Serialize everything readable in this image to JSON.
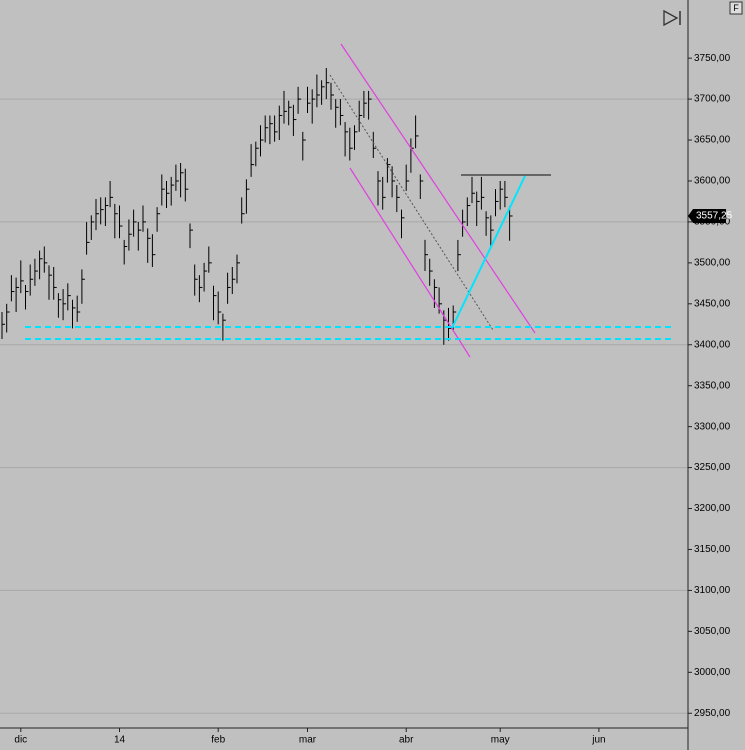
{
  "chart_data": {
    "type": "ohlc",
    "color": "#000000",
    "categories": [
      null,
      null,
      null,
      null,
      "dic",
      null,
      null,
      null,
      null,
      null,
      null,
      null,
      null,
      null,
      null,
      null,
      null,
      null,
      null,
      null,
      null,
      null,
      null,
      null,
      null,
      "14",
      null,
      null,
      null,
      null,
      null,
      null,
      null,
      null,
      null,
      null,
      null,
      null,
      null,
      null,
      null,
      null,
      null,
      null,
      null,
      null,
      "feb",
      null,
      null,
      null,
      null,
      null,
      null,
      null,
      null,
      null,
      null,
      null,
      null,
      null,
      null,
      null,
      null,
      null,
      null,
      "mar",
      null,
      null,
      null,
      null,
      null,
      null,
      null,
      null,
      null,
      null,
      null,
      null,
      null,
      null,
      null,
      null,
      null,
      null,
      null,
      null,
      "abr",
      null,
      null,
      null,
      null,
      null,
      null,
      null,
      null,
      null,
      null,
      null,
      null,
      null,
      null,
      null,
      null,
      null,
      null,
      null,
      "may",
      null,
      null,
      null,
      null,
      null,
      null,
      null,
      null,
      null,
      null,
      null,
      null,
      null,
      null,
      null,
      null,
      null,
      null,
      null,
      null,
      "jun"
    ],
    "high": [
      3440,
      3450,
      3485,
      3482,
      3503,
      3473,
      3498,
      3505,
      3515,
      3520,
      3497,
      3495,
      3463,
      3468,
      3475,
      3455,
      3460,
      3492,
      3550,
      3558,
      3578,
      3580,
      3580,
      3600,
      3572,
      3570,
      3528,
      3553,
      3565,
      3550,
      3570,
      3542,
      3535,
      3568,
      3608,
      3600,
      3605,
      3620,
      3622,
      3615,
      3548,
      3498,
      3485,
      3500,
      3520,
      3472,
      3465,
      3438,
      3488,
      3495,
      3510,
      3580,
      3602,
      3645,
      3648,
      3668,
      3680,
      3680,
      3680,
      3692,
      3710,
      3698,
      3693,
      3715,
      3660,
      3715,
      3712,
      3730,
      3723,
      3738,
      3720,
      3700,
      3700,
      3672,
      3665,
      3668,
      3698,
      3710,
      3710,
      3660,
      3612,
      3605,
      3628,
      3618,
      3595,
      3565,
      3620,
      3652,
      3680,
      3608,
      3528,
      3505,
      3480,
      3470,
      3442,
      3445,
      3448,
      3528,
      3565,
      3580,
      3605,
      3587,
      3605,
      3563,
      3558,
      3590,
      3600,
      3600,
      3569,
      null,
      null,
      null,
      null,
      null,
      null,
      null,
      null,
      null,
      null,
      null,
      null,
      null,
      null,
      null,
      null,
      null,
      null,
      null
    ],
    "low": [
      3407,
      3415,
      3453,
      3440,
      3463,
      3443,
      3460,
      3472,
      3480,
      3488,
      3455,
      3455,
      3433,
      3430,
      3442,
      3420,
      3428,
      3450,
      3510,
      3528,
      3540,
      3547,
      3545,
      3568,
      3530,
      3530,
      3498,
      3515,
      3532,
      3515,
      3538,
      3500,
      3495,
      3538,
      3570,
      3567,
      3570,
      3588,
      3580,
      3575,
      3518,
      3460,
      3452,
      3465,
      3488,
      3430,
      3425,
      3405,
      3450,
      3462,
      3475,
      3548,
      3560,
      3605,
      3618,
      3630,
      3647,
      3645,
      3648,
      3650,
      3670,
      3668,
      3655,
      3682,
      3625,
      3683,
      3670,
      3690,
      3693,
      3700,
      3687,
      3665,
      3668,
      3630,
      3625,
      3638,
      3660,
      3677,
      3675,
      3628,
      3570,
      3565,
      3598,
      3580,
      3562,
      3530,
      3588,
      3610,
      3640,
      3578,
      3490,
      3472,
      3445,
      3438,
      3400,
      3405,
      3418,
      3490,
      3532,
      3545,
      3573,
      3545,
      3565,
      3533,
      3520,
      3557,
      3565,
      3568,
      3527,
      null,
      null,
      null,
      null,
      null,
      null,
      null,
      null,
      null,
      null,
      null,
      null,
      null,
      null,
      null,
      null,
      null,
      null,
      null
    ],
    "close": [
      3425,
      3440,
      3465,
      3470,
      3478,
      3465,
      3480,
      3490,
      3505,
      3500,
      3485,
      3470,
      3455,
      3450,
      3460,
      3445,
      3440,
      3480,
      3525,
      3550,
      3560,
      3565,
      3570,
      3580,
      3560,
      3545,
      3520,
      3535,
      3550,
      3540,
      3550,
      3530,
      3510,
      3560,
      3590,
      3585,
      3595,
      3600,
      3610,
      3590,
      3540,
      3480,
      3470,
      3490,
      3500,
      3460,
      3440,
      3430,
      3470,
      3480,
      3500,
      3560,
      3590,
      3620,
      3640,
      3650,
      3665,
      3670,
      3660,
      3680,
      3685,
      3690,
      3675,
      3700,
      3650,
      3695,
      3700,
      3705,
      3715,
      3720,
      3705,
      3690,
      3680,
      3660,
      3640,
      3660,
      3680,
      3695,
      3700,
      3640,
      3600,
      3580,
      3620,
      3600,
      3580,
      3555,
      3600,
      3640,
      3655,
      3600,
      3510,
      3490,
      3470,
      3450,
      3430,
      3420,
      3440,
      3510,
      3550,
      3570,
      3585,
      3575,
      3580,
      3555,
      3540,
      3575,
      3590,
      3580,
      3557.25,
      null,
      null,
      null,
      null,
      null,
      null,
      null,
      null,
      null,
      null,
      null,
      null,
      null,
      null,
      null,
      null,
      null,
      null,
      null
    ],
    "last_price": {
      "value": 3557.25,
      "label": "3557,25"
    },
    "ylim": [
      2932,
      3821
    ],
    "yticks": [
      {
        "value": 3750,
        "label": "3750,00"
      },
      {
        "value": 3700,
        "label": "3700,00"
      },
      {
        "value": 3650,
        "label": "3650,00"
      },
      {
        "value": 3600,
        "label": "3600,00"
      },
      {
        "value": 3550,
        "label": "3550,00"
      },
      {
        "value": 3500,
        "label": "3500,00"
      },
      {
        "value": 3450,
        "label": "3450,00"
      },
      {
        "value": 3400,
        "label": "3400,00"
      },
      {
        "value": 3350,
        "label": "3350,00"
      },
      {
        "value": 3300,
        "label": "3300,00"
      },
      {
        "value": 3250,
        "label": "3250,00"
      },
      {
        "value": 3200,
        "label": "3200,00"
      },
      {
        "value": 3150,
        "label": "3150,00"
      },
      {
        "value": 3100,
        "label": "3100,00"
      },
      {
        "value": 3050,
        "label": "3050,00"
      },
      {
        "value": 3000,
        "label": "3000,00"
      },
      {
        "value": 2950,
        "label": "2950,00"
      }
    ],
    "ygrid": [
      3700,
      3550,
      3400,
      3250,
      3100,
      2950
    ]
  },
  "toolbar": {
    "button": "F"
  }
}
